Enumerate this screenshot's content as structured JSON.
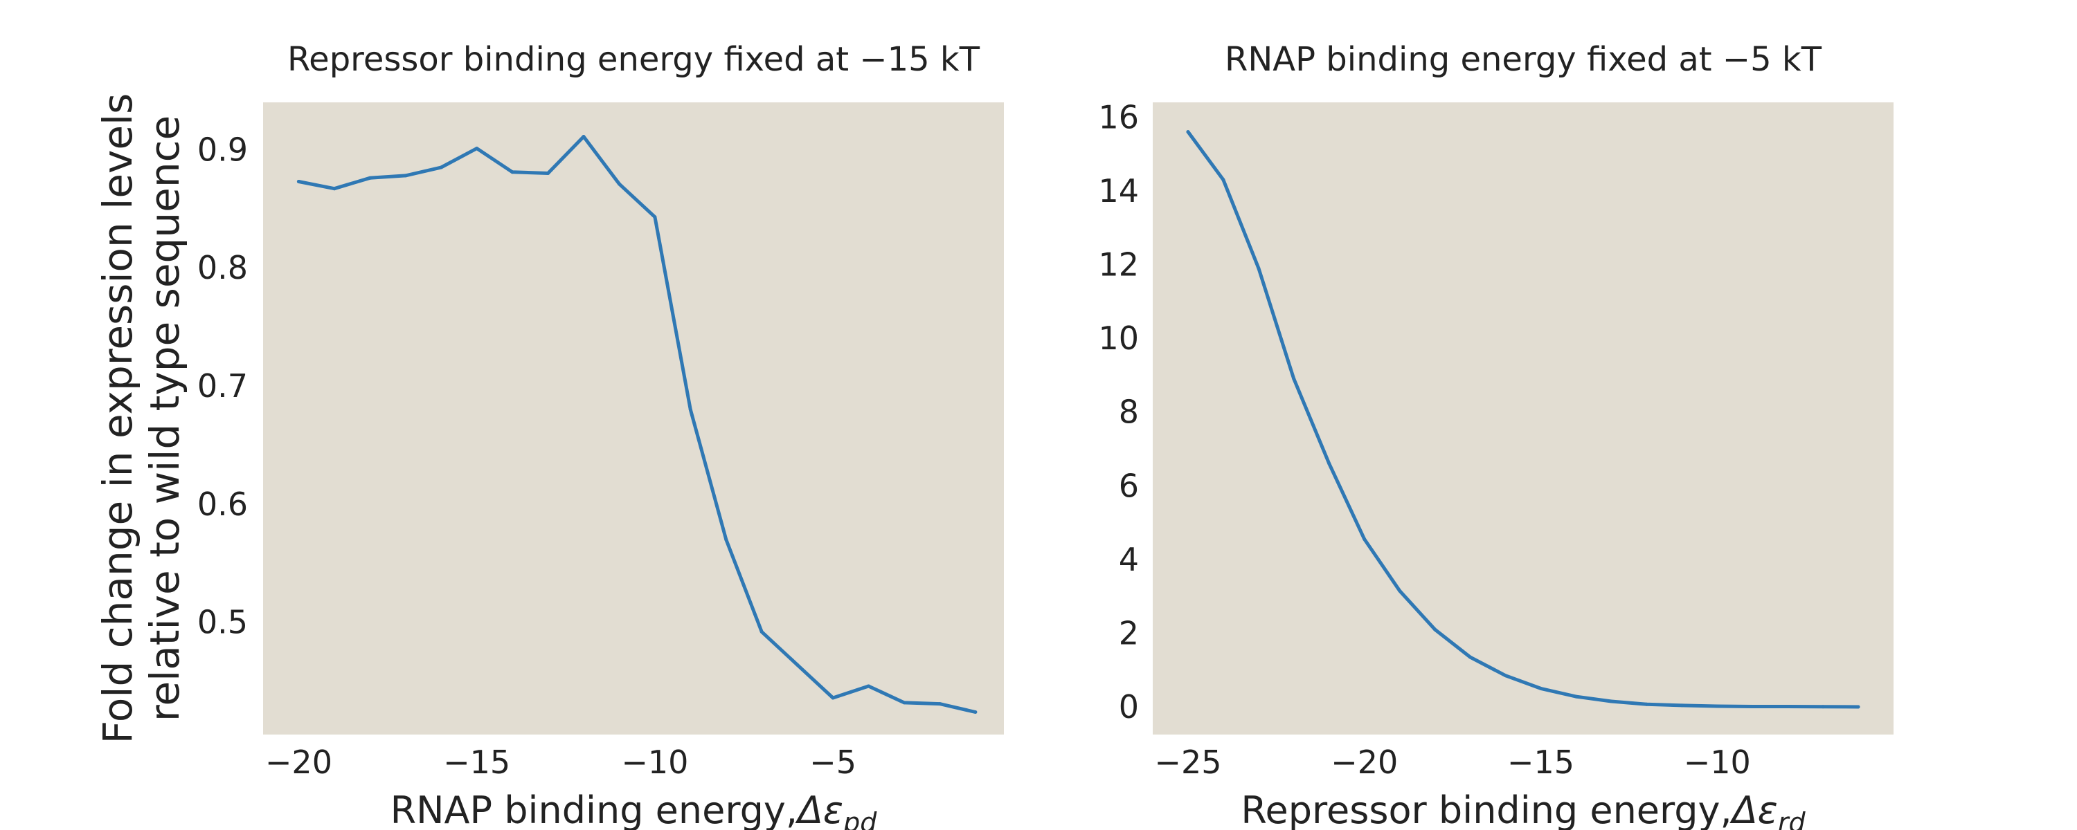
{
  "chart_data": [
    {
      "type": "line",
      "title": "Repressor binding energy fixed at −15 kT",
      "xlabel": "RNAP binding energy,",
      "xlabel_symbol": "Δε",
      "xlabel_subscript": "pd",
      "ylabel_lines": [
        "Fold change in expression levels",
        "relative to wild type sequence"
      ],
      "xlim": [
        -21,
        -0.2
      ],
      "ylim": [
        0.405,
        0.94
      ],
      "xticks": [
        -20,
        -15,
        -10,
        -5
      ],
      "xtick_labels": [
        "−20",
        "−15",
        "−10",
        "−5"
      ],
      "yticks": [
        0.5,
        0.6,
        0.7,
        0.8,
        0.9
      ],
      "ytick_labels": [
        "0.5",
        "0.6",
        "0.7",
        "0.8",
        "0.9"
      ],
      "grid": false,
      "background": "#e2ddd2",
      "line_color": "#2f78b4",
      "series": [
        {
          "x": [
            -20,
            -19,
            -18,
            -17,
            -16,
            -15,
            -14,
            -13,
            -12,
            -11,
            -10,
            -9,
            -8,
            -7,
            -6,
            -5,
            -4,
            -3,
            -2,
            -1
          ],
          "values": [
            0.873,
            0.867,
            0.876,
            0.878,
            0.885,
            0.901,
            0.881,
            0.88,
            0.911,
            0.871,
            0.843,
            0.68,
            0.57,
            0.492,
            0.464,
            0.436,
            0.446,
            0.432,
            0.431,
            0.424
          ]
        }
      ]
    },
    {
      "type": "line",
      "title": "RNAP binding energy fixed at −5 kT",
      "xlabel": "Repressor binding energy,",
      "xlabel_symbol": "Δε",
      "xlabel_subscript": "rd",
      "ylabel_lines": [],
      "xlim": [
        -26,
        -5
      ],
      "ylim": [
        -0.75,
        16.4
      ],
      "xticks": [
        -25,
        -20,
        -15,
        -10
      ],
      "xtick_labels": [
        "−25",
        "−20",
        "−15",
        "−10"
      ],
      "yticks": [
        0,
        2,
        4,
        6,
        8,
        10,
        12,
        14,
        16
      ],
      "ytick_labels": [
        "0",
        "2",
        "4",
        "6",
        "8",
        "10",
        "12",
        "14",
        "16"
      ],
      "grid": false,
      "background": "#e2ddd2",
      "line_color": "#2f78b4",
      "series": [
        {
          "x": [
            -25,
            -24,
            -23,
            -22,
            -21,
            -20,
            -19,
            -18,
            -17,
            -16,
            -15,
            -14,
            -13,
            -12,
            -11,
            -10,
            -9,
            -8,
            -7,
            -6
          ],
          "values": [
            15.6,
            14.3,
            11.9,
            8.9,
            6.6,
            4.55,
            3.15,
            2.1,
            1.35,
            0.85,
            0.5,
            0.28,
            0.15,
            0.07,
            0.04,
            0.02,
            0.01,
            0.01,
            0.005,
            0.0
          ]
        }
      ]
    }
  ]
}
